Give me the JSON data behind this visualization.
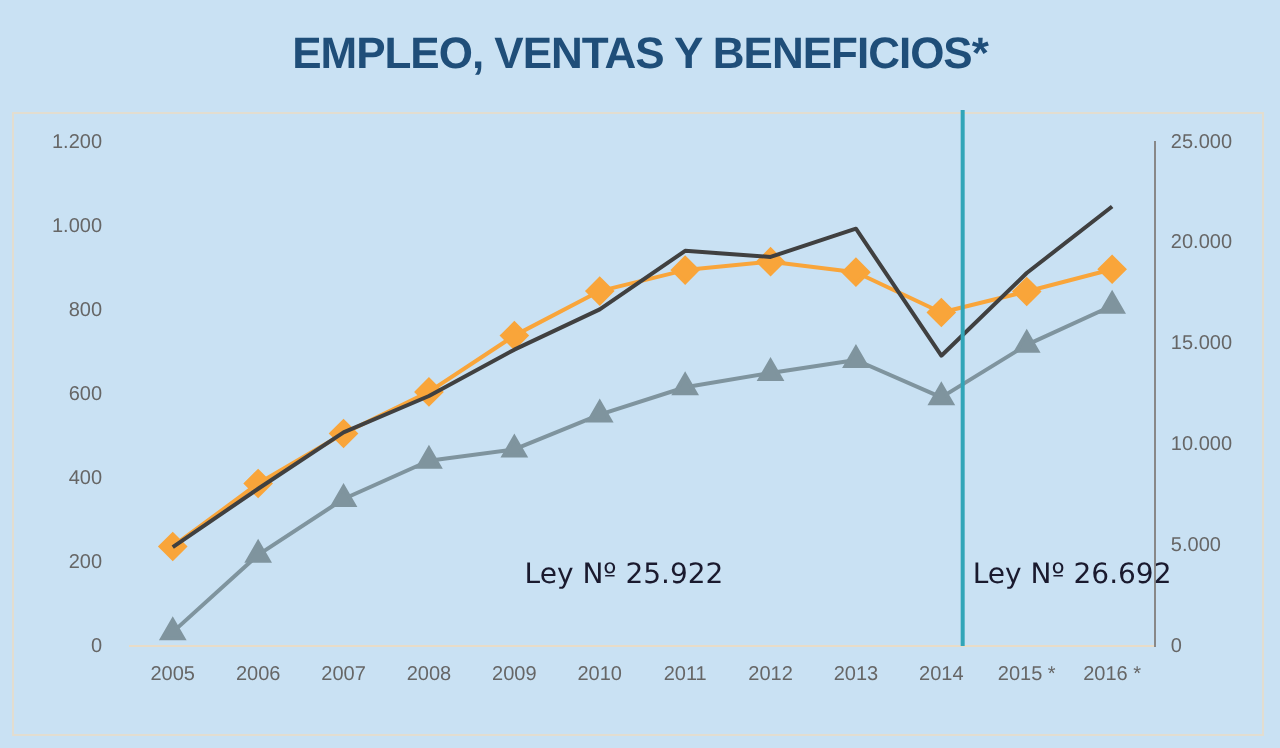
{
  "chart_data": {
    "type": "line",
    "title": "EMPLEO, VENTAS Y BENEFICIOS*",
    "x": [
      2005,
      2006,
      2007,
      2008,
      2009,
      2010,
      2011,
      2012,
      2013,
      2014,
      2015,
      2016
    ],
    "xlim": [
      2004.5,
      2016.5
    ],
    "xticks": [
      2005,
      2006,
      2007,
      2008,
      2009,
      2010,
      2011,
      2012,
      2013,
      2014,
      {
        "value": 2015,
        "label": "2015 *"
      },
      {
        "value": 2016,
        "label": "2016 *"
      }
    ],
    "series": [
      {
        "color": "#404040",
        "marker": "none",
        "axis": "y2",
        "values": [
          4900,
          7800,
          10600,
          12400,
          14700,
          16700,
          19600,
          19300,
          20700,
          14400,
          18500,
          21800
        ]
      },
      {
        "color": "#f9a53a",
        "marker": "diamond",
        "values": [
          237,
          387,
          506,
          605,
          739,
          845,
          895,
          915,
          890,
          794,
          844,
          897
        ]
      },
      {
        "color": "#7f949e",
        "marker": "triangle",
        "values": [
          33,
          217,
          350,
          441,
          468,
          551,
          616,
          650,
          681,
          592,
          717,
          810
        ]
      }
    ],
    "ylim": [
      0,
      1200
    ],
    "yticks": [
      0,
      200,
      400,
      600,
      800,
      {
        "value": 1000,
        "label": "1.000"
      },
      {
        "value": 1200,
        "label": "1.200"
      }
    ],
    "y2lim": [
      0,
      25000
    ],
    "y2ticks": [
      0,
      {
        "value": 5000,
        "label": "5.000"
      },
      {
        "value": 10000,
        "label": "10.000"
      },
      {
        "value": 15000,
        "label": "15.000"
      },
      {
        "value": 20000,
        "label": "20.000"
      },
      {
        "value": 25000,
        "label": "25.000"
      }
    ],
    "ref_lines": [
      {
        "axis": "x",
        "value": 2014.25,
        "label": "Ley Nº 26.692",
        "color": "#31a5b8"
      }
    ],
    "annotations": [
      "Ley Nº 25.922"
    ],
    "grid": false,
    "legend": false
  }
}
